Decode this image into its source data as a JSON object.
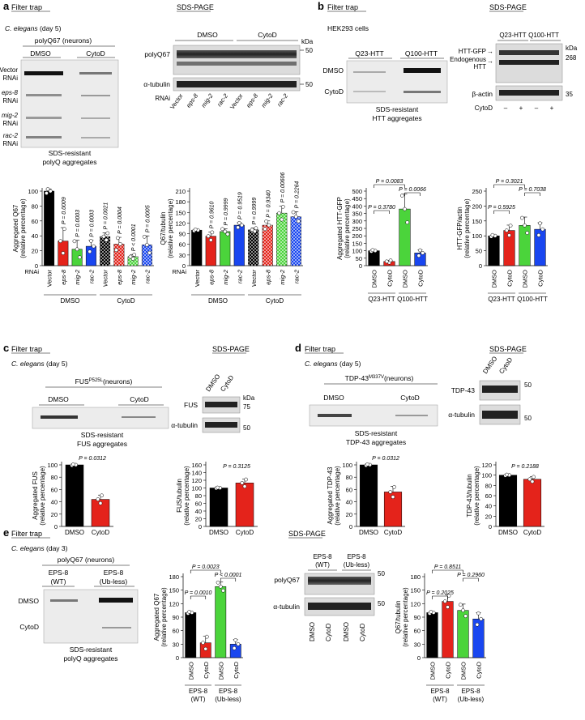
{
  "colors": {
    "black": "#000000",
    "red": "#e4231b",
    "green": "#4bd43b",
    "blue": "#1946f0",
    "gray": "#888888"
  },
  "panel_a": {
    "letter": "a",
    "filter_trap": "Filter trap",
    "sds_page": "SDS-PAGE",
    "organism": "C. elegans",
    "organism_note": "(day 5)",
    "construct": "polyQ67 (neurons)",
    "cond1": "DMSO",
    "cond2": "CytoD",
    "row_labels": [
      [
        "Vector",
        "RNAi"
      ],
      [
        "eps-8",
        "RNAi"
      ],
      [
        "mig-2",
        "RNAi"
      ],
      [
        "rac-2",
        "RNAi"
      ]
    ],
    "caption": [
      "SDS-resistant",
      "polyQ aggregates"
    ],
    "wb_labels": [
      "polyQ67",
      "α-tubulin"
    ],
    "kda": "kDa",
    "mw": [
      "50",
      "50"
    ],
    "rnai": "RNAi",
    "lanes": [
      "Vector",
      "eps-8",
      "mig-2",
      "rac-2",
      "Vector",
      "eps-8",
      "mig-2",
      "rac-2"
    ]
  },
  "panel_b": {
    "letter": "b",
    "filter_trap": "Filter trap",
    "sds_page": "SDS-PAGE",
    "cells": "HEK293 cells",
    "col_labels": [
      "Q23-HTT",
      "Q100-HTT"
    ],
    "row_labels": [
      "DMSO",
      "CytoD"
    ],
    "caption": [
      "SDS-resistant",
      "HTT aggregates"
    ],
    "wb_labels": [
      "HTT-GFP",
      "Endogenous",
      "HTT",
      "β-actin"
    ],
    "kda": "kDa",
    "mw": [
      "268",
      "35"
    ],
    "cytod": "CytoD",
    "signs": [
      "–",
      "+",
      "–",
      "+"
    ]
  },
  "panel_c": {
    "letter": "c",
    "filter_trap": "Filter trap",
    "sds_page": "SDS-PAGE",
    "organism": "C. elegans",
    "organism_note": "(day 5)",
    "construct": "FUS",
    "construct_sup": "P525L",
    "construct_suffix": "(neurons)",
    "cond1": "DMSO",
    "cond2": "CytoD",
    "caption": [
      "SDS-resistant",
      "FUS aggregates"
    ],
    "wb_labels": [
      "FUS",
      "α-tubulin"
    ],
    "kda": "kDa",
    "mw": [
      "75",
      "50"
    ]
  },
  "panel_d": {
    "letter": "d",
    "filter_trap": "Filter trap",
    "sds_page": "SDS-PAGE",
    "organism": "C. elegans",
    "organism_note": "(day 5)",
    "construct": "TDP-43",
    "construct_sup": "M337V",
    "construct_suffix": "(neurons)",
    "cond1": "DMSO",
    "cond2": "CytoD",
    "caption": [
      "SDS-resistant",
      "TDP-43 aggregates"
    ],
    "wb_labels": [
      "TDP-43",
      "α-tubulin"
    ],
    "mw": [
      "50",
      "50"
    ]
  },
  "panel_e": {
    "letter": "e",
    "filter_trap": "Filter trap",
    "sds_page": "SDS-PAGE",
    "organism": "C. elegans",
    "organism_note": "(day 3)",
    "construct": "polyQ67 (neurons)",
    "col_labels": [
      [
        "EPS-8",
        "(WT)"
      ],
      [
        "EPS-8",
        "(Ub-less)"
      ]
    ],
    "row_labels": [
      "DMSO",
      "CytoD"
    ],
    "caption": [
      "SDS-resistant",
      "polyQ aggregates"
    ],
    "wb_labels": [
      "polyQ67",
      "α-tubulin"
    ],
    "mw": [
      "50",
      "50"
    ],
    "lanes": [
      "DMSO",
      "CytoD",
      "DMSO",
      "CytoD"
    ]
  },
  "chart_data": [
    {
      "id": "a1",
      "type": "bar",
      "ylabel": [
        "Aggregated Q67",
        "(relative percentage)"
      ],
      "ylim": [
        0,
        100
      ],
      "yticks": [
        0,
        20,
        40,
        60,
        80,
        100
      ],
      "categories": [
        "Vector",
        "eps-8",
        "mig-2",
        "rac-2",
        "Vector",
        "eps-8",
        "mig-2",
        "rac-2"
      ],
      "values": [
        100,
        33,
        22,
        26,
        39,
        29,
        12,
        28
      ],
      "errors": [
        3,
        18,
        12,
        8,
        5,
        9,
        3,
        12
      ],
      "colors": [
        "black",
        "red",
        "green",
        "blue",
        "black",
        "red",
        "green",
        "blue"
      ],
      "patterned": [
        false,
        false,
        false,
        false,
        true,
        true,
        true,
        true
      ],
      "pvalues": [
        "",
        "P = 0.0009",
        "P = 0.0003",
        "P = 0.0003",
        "P = 0.0021",
        "P = 0.0004",
        "P < 0.0001",
        "P = 0.0005"
      ],
      "rnai_label": "RNAi",
      "groups": [
        "DMSO",
        "CytoD"
      ]
    },
    {
      "id": "a2",
      "type": "bar",
      "ylabel": [
        "Q67/tubulin",
        "(relative percentage)"
      ],
      "ylim": [
        0,
        200
      ],
      "yticks": [
        0,
        30,
        60,
        90,
        120,
        150,
        180,
        210
      ],
      "categories": [
        "Vector",
        "eps-8",
        "mig-2",
        "rac-2",
        "Vector",
        "eps-8",
        "mig-2",
        "rac-2"
      ],
      "values": [
        100,
        83,
        96,
        114,
        101,
        114,
        148,
        138
      ],
      "errors": [
        2,
        12,
        8,
        7,
        5,
        12,
        20,
        14
      ],
      "colors": [
        "black",
        "red",
        "green",
        "blue",
        "black",
        "red",
        "green",
        "blue"
      ],
      "patterned": [
        false,
        false,
        false,
        false,
        true,
        true,
        true,
        true
      ],
      "pvalues": [
        "",
        "P = 0.9610",
        "P = 0.9999",
        "P = 0.9519",
        "P = 0.9999",
        "P = 0.9340",
        "P = 0.00606",
        "P = 0.2264"
      ],
      "rnai_label": "RNAi",
      "groups": [
        "DMSO",
        "CytoD"
      ]
    },
    {
      "id": "b1",
      "type": "bar",
      "ylabel": [
        "Aggregated HTT-GFP",
        "(relative percentage)"
      ],
      "ylim": [
        0,
        500
      ],
      "yticks": [
        0,
        50,
        100,
        150,
        200,
        250,
        300,
        350,
        400,
        450,
        500
      ],
      "categories": [
        "DMSO",
        "CytoD",
        "DMSO",
        "CytoD"
      ],
      "values": [
        100,
        28,
        380,
        85
      ],
      "errors": [
        5,
        8,
        100,
        20
      ],
      "colors": [
        "black",
        "red",
        "green",
        "blue"
      ],
      "groups": [
        "Q23-HTT",
        "Q100-HTT"
      ],
      "comparisons": [
        {
          "a": 0,
          "b": 2,
          "text": "P = 0.0083"
        },
        {
          "a": 2,
          "b": 3,
          "text": "P = 0.0066"
        },
        {
          "a": 0,
          "b": 1,
          "text": "P = 0.3780"
        }
      ]
    },
    {
      "id": "b2",
      "type": "bar",
      "ylabel": [
        "HTT-GFP/actin",
        "(relative percentage)"
      ],
      "ylim": [
        0,
        250
      ],
      "yticks": [
        0,
        50,
        100,
        150,
        200,
        250
      ],
      "categories": [
        "DMSO",
        "CytoD",
        "DMSO",
        "CytoD"
      ],
      "values": [
        100,
        118,
        135,
        122
      ],
      "errors": [
        3,
        18,
        28,
        22
      ],
      "colors": [
        "black",
        "red",
        "green",
        "blue"
      ],
      "groups": [
        "Q23-HTT",
        "Q100-HTT"
      ],
      "comparisons": [
        {
          "a": 0,
          "b": 2,
          "text": "P = 0.3021"
        },
        {
          "a": 2,
          "b": 3,
          "text": "P = 0.7038"
        },
        {
          "a": 0,
          "b": 1,
          "text": "P = 0.5925"
        }
      ]
    },
    {
      "id": "c1",
      "type": "bar",
      "ylabel": [
        "Aggregated FUS",
        "(relative percentage)"
      ],
      "ylim": [
        0,
        100
      ],
      "yticks": [
        0,
        20,
        40,
        60,
        80,
        100
      ],
      "categories": [
        "DMSO",
        "CytoD"
      ],
      "values": [
        100,
        44
      ],
      "errors": [
        1,
        7
      ],
      "colors": [
        "black",
        "red"
      ],
      "pvalue": "P = 0.0312"
    },
    {
      "id": "c2",
      "type": "bar",
      "ylabel": [
        "FUS/tubulin",
        "(relative percentage)"
      ],
      "ylim": [
        0,
        160
      ],
      "yticks": [
        0,
        20,
        40,
        60,
        80,
        100,
        120,
        140,
        160
      ],
      "categories": [
        "DMSO",
        "CytoD"
      ],
      "values": [
        100,
        113
      ],
      "errors": [
        1,
        10
      ],
      "colors": [
        "black",
        "red"
      ],
      "pvalue": "P = 0.3125"
    },
    {
      "id": "d1",
      "type": "bar",
      "ylabel": [
        "Aggregated TDP-43",
        "(relative percentage)"
      ],
      "ylim": [
        0,
        100
      ],
      "yticks": [
        0,
        20,
        40,
        60,
        80,
        100
      ],
      "categories": [
        "DMSO",
        "CytoD"
      ],
      "values": [
        100,
        56
      ],
      "errors": [
        1,
        9
      ],
      "colors": [
        "black",
        "red"
      ],
      "pvalue": "P = 0.0312"
    },
    {
      "id": "d2",
      "type": "bar",
      "ylabel": [
        "TDP-43/tubulin",
        "(relative percentage)"
      ],
      "ylim": [
        0,
        120
      ],
      "yticks": [
        0,
        20,
        40,
        60,
        80,
        100,
        120
      ],
      "categories": [
        "DMSO",
        "CytoD"
      ],
      "values": [
        100,
        92
      ],
      "errors": [
        1,
        5
      ],
      "colors": [
        "black",
        "red"
      ],
      "pvalue": "P = 0.2188"
    },
    {
      "id": "e1",
      "type": "bar",
      "ylabel": [
        "Aggregated Q67",
        "(relative percentage)"
      ],
      "ylim": [
        0,
        180
      ],
      "yticks": [
        0,
        30,
        60,
        90,
        120,
        150,
        180
      ],
      "categories": [
        "DMSO",
        "CytoD",
        "DMSO",
        "CytoD"
      ],
      "values": [
        100,
        33,
        158,
        30
      ],
      "errors": [
        2,
        15,
        10,
        10
      ],
      "colors": [
        "black",
        "red",
        "green",
        "blue"
      ],
      "groups": [
        "EPS-8\n(WT)",
        "EPS-8\n(Ub-less)"
      ],
      "comparisons": [
        {
          "a": 0,
          "b": 2,
          "text": "P = 0.0023"
        },
        {
          "a": 2,
          "b": 3,
          "text": "P < 0.0001"
        },
        {
          "a": 0,
          "b": 1,
          "text": "P = 0.0010"
        }
      ]
    },
    {
      "id": "e2",
      "type": "bar",
      "ylabel": [
        "Q67/tubulin",
        "(relative percentage)"
      ],
      "ylim": [
        0,
        180
      ],
      "yticks": [
        0,
        30,
        60,
        90,
        120,
        150,
        180
      ],
      "categories": [
        "DMSO",
        "CytoD",
        "DMSO",
        "CytoD"
      ],
      "values": [
        100,
        125,
        105,
        86
      ],
      "errors": [
        2,
        14,
        14,
        14
      ],
      "colors": [
        "black",
        "red",
        "green",
        "blue"
      ],
      "groups": [
        "EPS-8\n(WT)",
        "EPS-8\n(Ub-less)"
      ],
      "comparisons": [
        {
          "a": 0,
          "b": 2,
          "text": "P = 0.8511"
        },
        {
          "a": 2,
          "b": 3,
          "text": "P = 0.2960"
        },
        {
          "a": 0,
          "b": 1,
          "text": "P = 0.2025"
        }
      ]
    }
  ]
}
